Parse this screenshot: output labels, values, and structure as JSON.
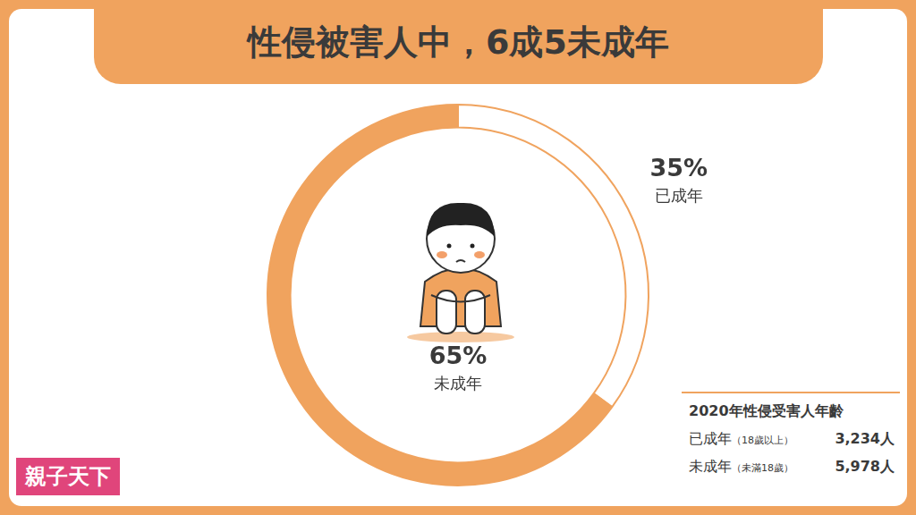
{
  "chart_data": {
    "type": "doughnut",
    "title": "性侵被害人中，6成5未成年",
    "categories": [
      "已成年",
      "未成年"
    ],
    "values": [
      35,
      65
    ],
    "value_labels": [
      "35%",
      "65%"
    ],
    "colors": [
      "#ffffff",
      "#f0a35e"
    ],
    "data_labels": true
  },
  "info_box": {
    "title": "2020年性侵受害人年齡",
    "rows": [
      [
        "已成年",
        "（18歲以上）",
        "3,234人"
      ],
      [
        "未成年",
        "（未滿18歲）",
        "5,978人"
      ]
    ]
  },
  "logo": "親子天下"
}
